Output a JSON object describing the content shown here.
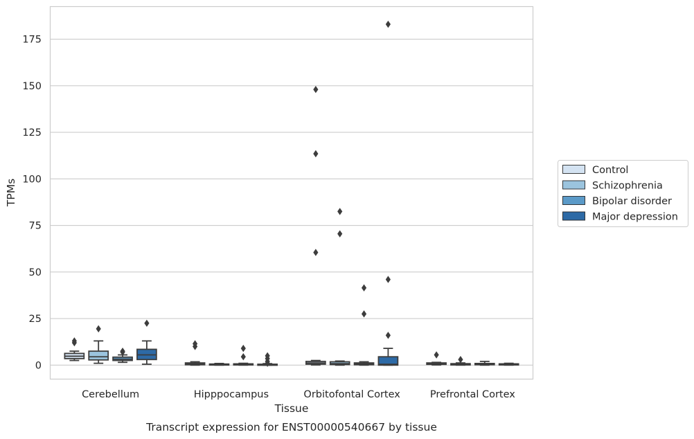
{
  "chart_data": {
    "type": "box",
    "title": "Transcript expression for ENST00000540667 by tissue",
    "xlabel": "Tissue",
    "ylabel": "TPMs",
    "ylim": [
      -7.5,
      192.5
    ],
    "yticks": [
      0,
      25,
      50,
      75,
      100,
      125,
      150,
      175
    ],
    "grid": "horizontal",
    "legend": "right",
    "categories": [
      "Cerebellum",
      "Hipppocampus",
      "Orbitofontal Cortex",
      "Prefrontal Cortex"
    ],
    "series": [
      {
        "name": "Control",
        "color": "#d4e3f2",
        "boxes": [
          {
            "min": 2.5,
            "q1": 3.5,
            "median": 4.8,
            "q3": 6.3,
            "max": 7.5,
            "outliers": [
              12,
              13
            ]
          },
          {
            "min": 0,
            "q1": 0.2,
            "median": 0.6,
            "q3": 1.2,
            "max": 1.8,
            "outliers": [
              10,
              11.5
            ]
          },
          {
            "min": 0.1,
            "q1": 0.5,
            "median": 1.2,
            "q3": 2,
            "max": 2.5,
            "outliers": [
              148,
              113.5,
              60.5
            ]
          },
          {
            "min": 0.1,
            "q1": 0.4,
            "median": 0.8,
            "q3": 1.2,
            "max": 1.5,
            "outliers": [
              5.5
            ]
          }
        ]
      },
      {
        "name": "Schizophrenia",
        "color": "#9bc4de",
        "boxes": [
          {
            "min": 1,
            "q1": 2.8,
            "median": 4.5,
            "q3": 7.5,
            "max": 13,
            "outliers": [
              19.5
            ]
          },
          {
            "min": 0,
            "q1": 0.1,
            "median": 0.3,
            "q3": 0.6,
            "max": 0.9,
            "outliers": []
          },
          {
            "min": 0,
            "q1": 0.3,
            "median": 0.8,
            "q3": 1.8,
            "max": 2.2,
            "outliers": [
              82.5,
              70.5
            ]
          },
          {
            "min": 0,
            "q1": 0.1,
            "median": 0.3,
            "q3": 0.8,
            "max": 1.2,
            "outliers": [
              3
            ]
          }
        ]
      },
      {
        "name": "Bipolar disorder",
        "color": "#5b9ac8",
        "boxes": [
          {
            "min": 1.5,
            "q1": 2.5,
            "median": 3.2,
            "q3": 4.3,
            "max": 5.5,
            "outliers": [
              7,
              7.5
            ]
          },
          {
            "min": 0,
            "q1": 0.1,
            "median": 0.3,
            "q3": 0.7,
            "max": 1,
            "outliers": [
              4.5,
              9
            ]
          },
          {
            "min": 0,
            "q1": 0.2,
            "median": 0.6,
            "q3": 1.2,
            "max": 1.8,
            "outliers": [
              41.5,
              27.5
            ]
          },
          {
            "min": 0,
            "q1": 0.2,
            "median": 0.5,
            "q3": 0.9,
            "max": 2,
            "outliers": []
          }
        ]
      },
      {
        "name": "Major depression",
        "color": "#2d6aa6",
        "boxes": [
          {
            "min": 0.5,
            "q1": 3,
            "median": 5.5,
            "q3": 8.5,
            "max": 13,
            "outliers": [
              22.5
            ]
          },
          {
            "min": 0,
            "q1": 0.1,
            "median": 0.2,
            "q3": 0.5,
            "max": 0.8,
            "outliers": [
              1,
              2,
              3.5,
              5
            ]
          },
          {
            "min": 0,
            "q1": 0,
            "median": 0.5,
            "q3": 4.5,
            "max": 9,
            "outliers": [
              183,
              46,
              16
            ]
          },
          {
            "min": 0,
            "q1": 0.1,
            "median": 0.3,
            "q3": 0.7,
            "max": 1,
            "outliers": []
          }
        ]
      }
    ]
  }
}
